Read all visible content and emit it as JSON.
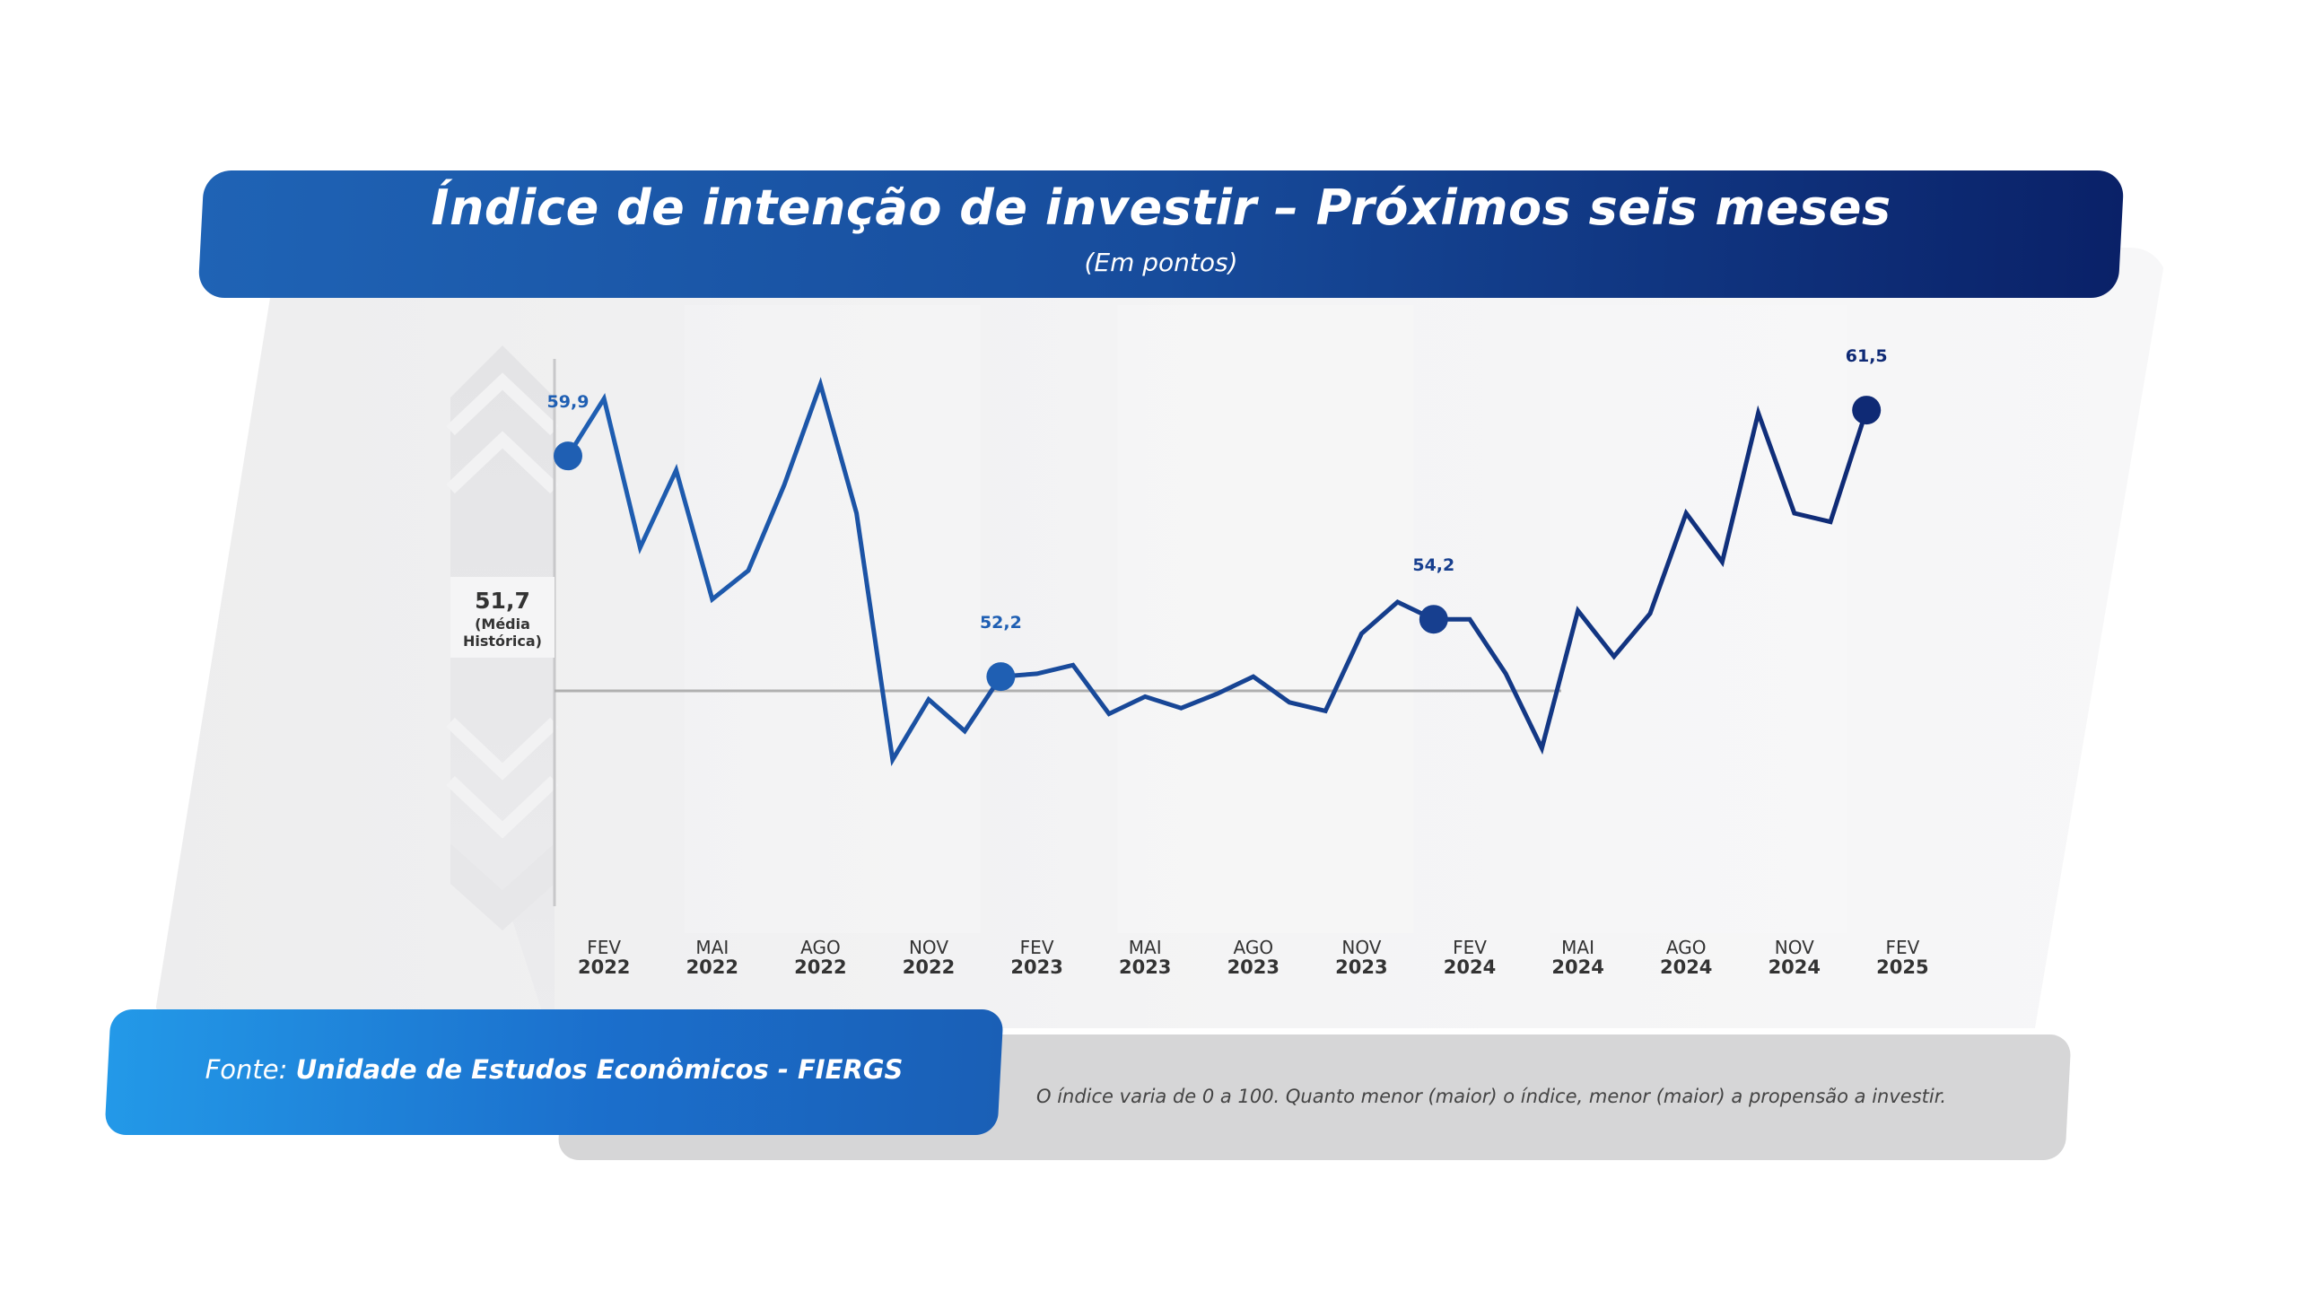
{
  "header": {
    "title": "Índice de intenção de investir – Próximos seis meses",
    "subtitle": "(Em pontos)"
  },
  "footer": {
    "source_prefix": "Fonte:",
    "source_name": "Unidade de Estudos Econômicos - FIERGS",
    "note": "O índice varia de 0 a 100. Quanto menor (maior) o índice, menor (maior) a propensão a investir."
  },
  "colors": {
    "line_2022": "#1f5fb3",
    "line_2025": "#0f2a75",
    "title_bar_start": "#1f63b5",
    "title_bar_end": "#0a2168",
    "reference_line": "#b0b0b0"
  },
  "chart_data": {
    "type": "line",
    "title": "Índice de intenção de investir – Próximos seis meses",
    "subtitle": "(Em pontos)",
    "x_tick_labels": [
      [
        "FEV",
        "2022"
      ],
      [
        "MAI",
        "2022"
      ],
      [
        "AGO",
        "2022"
      ],
      [
        "NOV",
        "2022"
      ],
      [
        "FEV",
        "2023"
      ],
      [
        "MAI",
        "2023"
      ],
      [
        "AGO",
        "2023"
      ],
      [
        "NOV",
        "2023"
      ],
      [
        "FEV",
        "2024"
      ],
      [
        "MAI",
        "2024"
      ],
      [
        "AGO",
        "2024"
      ],
      [
        "NOV",
        "2024"
      ],
      [
        "FEV",
        "2025"
      ]
    ],
    "series": [
      {
        "values": [
          59.9,
          61.9,
          56.7,
          59.4,
          54.9,
          55.9,
          58.9,
          62.4,
          57.9,
          49.3,
          51.4,
          50.3,
          52.2,
          52.3,
          52.6,
          50.9,
          51.5,
          51.1,
          51.6,
          52.2,
          51.3,
          51.0,
          53.7,
          54.8,
          54.2,
          54.2,
          52.3,
          49.7,
          54.5,
          52.9,
          54.4,
          57.9,
          56.2,
          61.4,
          57.9,
          57.6,
          61.5
        ]
      }
    ],
    "highlighted_points": [
      {
        "index": 0,
        "label": "59,9"
      },
      {
        "index": 12,
        "label": "52,2"
      },
      {
        "index": 24,
        "label": "54,2"
      },
      {
        "index": 36,
        "label": "61,5"
      }
    ],
    "reference_line": {
      "value": 51.7,
      "label": "51,7",
      "caption": [
        "(Média",
        "Histórica)"
      ]
    },
    "ylim": [
      44.5,
      63.6
    ],
    "grid": false
  }
}
